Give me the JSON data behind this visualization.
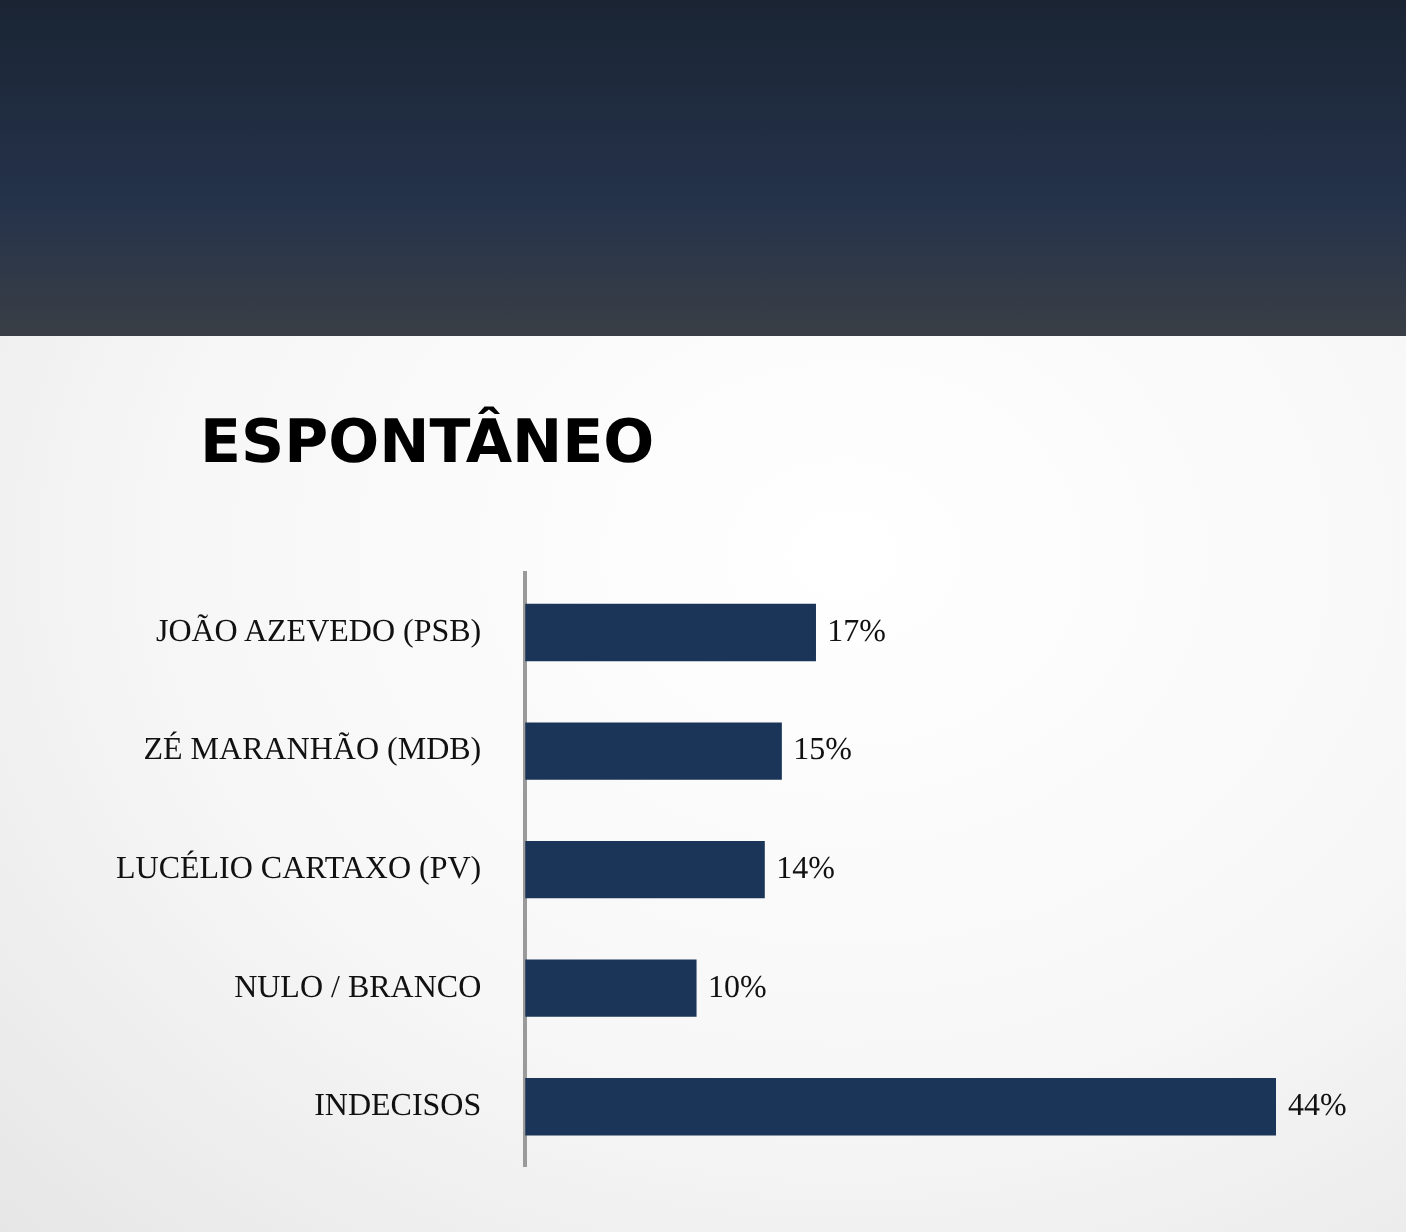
{
  "chart_data": {
    "type": "bar",
    "orientation": "horizontal",
    "title": "ESPONTÂNEO",
    "categories": [
      "JOÃO AZEVEDO (PSB)",
      "ZÉ MARANHÃO (MDB)",
      "LUCÉLIO CARTAXO (PV)",
      "NULO / BRANCO",
      "INDECISOS"
    ],
    "values": [
      17,
      15,
      14,
      10,
      44
    ],
    "value_labels": [
      "17%",
      "15%",
      "14%",
      "10%",
      "44%"
    ],
    "color": "#1b3558"
  }
}
